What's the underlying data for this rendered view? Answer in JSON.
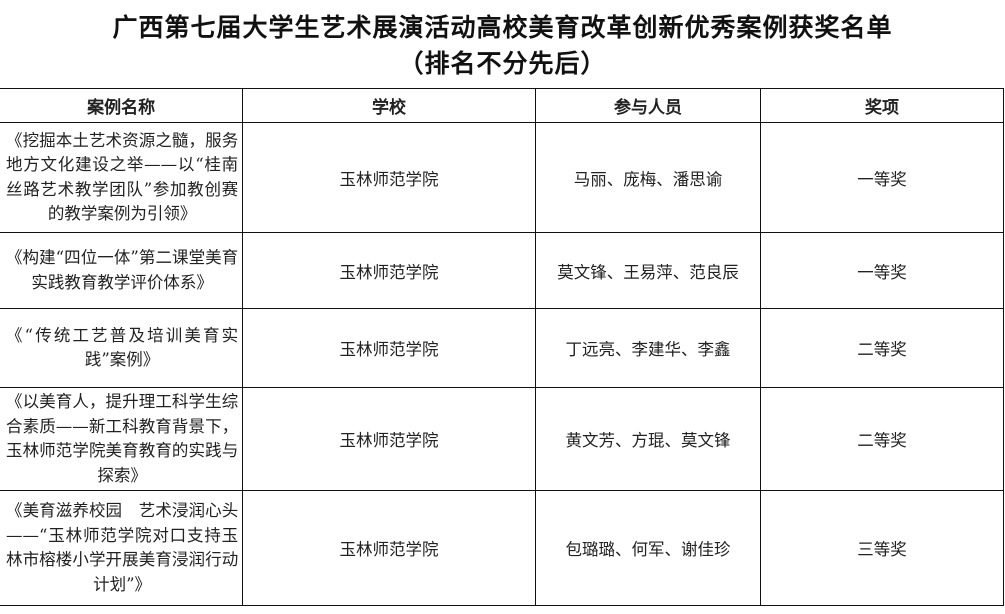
{
  "document": {
    "title_line1": "广西第七届大学生艺术展演活动高校美育改革创新优秀案例获奖名单",
    "title_line2": "（排名不分先后）"
  },
  "table": {
    "headers": [
      "案例名称",
      "学校",
      "参与人员",
      "奖项"
    ],
    "rows": [
      {
        "case": "《挖掘本土艺术资源之髓，服务地方文化建设之举——以“桂南丝路艺术教学团队”参加教创赛的教学案例为引领》",
        "school": "玉林师范学院",
        "members": "马丽、庞梅、潘思谕",
        "award": "一等奖"
      },
      {
        "case": "《构建“四位一体”第二课堂美育实践教育教学评价体系》",
        "school": "玉林师范学院",
        "members": "莫文锋、王易萍、范良辰",
        "award": "一等奖"
      },
      {
        "case": "《“传统工艺普及培训美育实践”案例》",
        "school": "玉林师范学院",
        "members": "丁远亮、李建华、李鑫",
        "award": "二等奖"
      },
      {
        "case": "《以美育人，提升理工科学生综合素质——新工科教育背景下，玉林师范学院美育教育的实践与探索》",
        "school": "玉林师范学院",
        "members": "黄文芳、方琨、莫文锋",
        "award": "二等奖"
      },
      {
        "case": "《美育滋养校园　艺术浸润心头——“玉林师范学院对口支持玉林市榕楼小学开展美育浸润行动计划”》",
        "school": "玉林师范学院",
        "members": "包璐璐、何军、谢佳珍",
        "award": "三等奖"
      }
    ]
  }
}
